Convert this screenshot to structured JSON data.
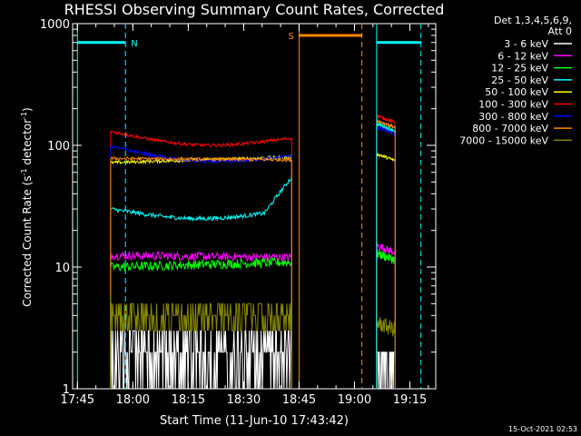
{
  "chart_data": {
    "type": "line",
    "title": "RHESSI Observing Summary Count Rates, Corrected",
    "xlabel": "Start Time (11-Jun-10 17:43:42)",
    "ylabel_main": "Corrected Count Rate (s",
    "ylabel_sup1": "-1",
    "ylabel_mid": " detector",
    "ylabel_sup2": "-1",
    "ylabel_end": ")",
    "yscale": "log",
    "ylim": [
      1,
      1000
    ],
    "xlim": [
      "17:43:42",
      "19:22:00"
    ],
    "x_ticks": [
      "17:45",
      "18:00",
      "18:15",
      "18:30",
      "18:45",
      "19:00",
      "19:15"
    ],
    "y_ticks": [
      "1",
      "10",
      "100",
      "1000"
    ],
    "legend_header": [
      "Det 1,3,4,5,6,9,",
      "Att 0"
    ],
    "legend_position": "right",
    "timestamp": "15-Oct-2021 02:53",
    "markers": [
      {
        "label": "N",
        "start": "17:45",
        "end": "17:58",
        "y": 700,
        "color": "#00ffff"
      },
      {
        "label": "S",
        "start": "18:45",
        "end": "19:02",
        "y": 800,
        "color": "#ff8800"
      },
      {
        "label": "",
        "start": "19:06",
        "end": "19:18",
        "y": 700,
        "color": "#00ffff"
      }
    ],
    "series": [
      {
        "name": "3 - 6 keV",
        "color": "#ffffff"
      },
      {
        "name": "6 - 12 keV",
        "color": "#ff00ff"
      },
      {
        "name": "12 - 25 keV",
        "color": "#00ff00"
      },
      {
        "name": "25 - 50 keV",
        "color": "#00ffff"
      },
      {
        "name": "50 - 100 keV",
        "color": "#ffff00"
      },
      {
        "name": "100 - 300 keV",
        "color": "#ff0000"
      },
      {
        "name": "300 - 800 keV",
        "color": "#0000ff"
      },
      {
        "name": "800 - 7000 keV",
        "color": "#ff8800"
      },
      {
        "name": "7000 - 15000 keV",
        "color": "#888800"
      }
    ],
    "segments": [
      {
        "start": "17:54",
        "end": "18:43"
      },
      {
        "start": "19:06",
        "end": "19:11"
      }
    ],
    "levels": {
      "segment1_start": [
        2.0,
        12.5,
        10.0,
        30,
        72,
        130,
        98,
        78,
        6.0
      ],
      "segment1_end": [
        2.0,
        12.0,
        11.0,
        55,
        80,
        115,
        82,
        76,
        5.0
      ],
      "segment2": [
        2.0,
        15.0,
        13.0,
        150,
        85,
        175,
        140,
        160,
        3.5
      ]
    }
  }
}
